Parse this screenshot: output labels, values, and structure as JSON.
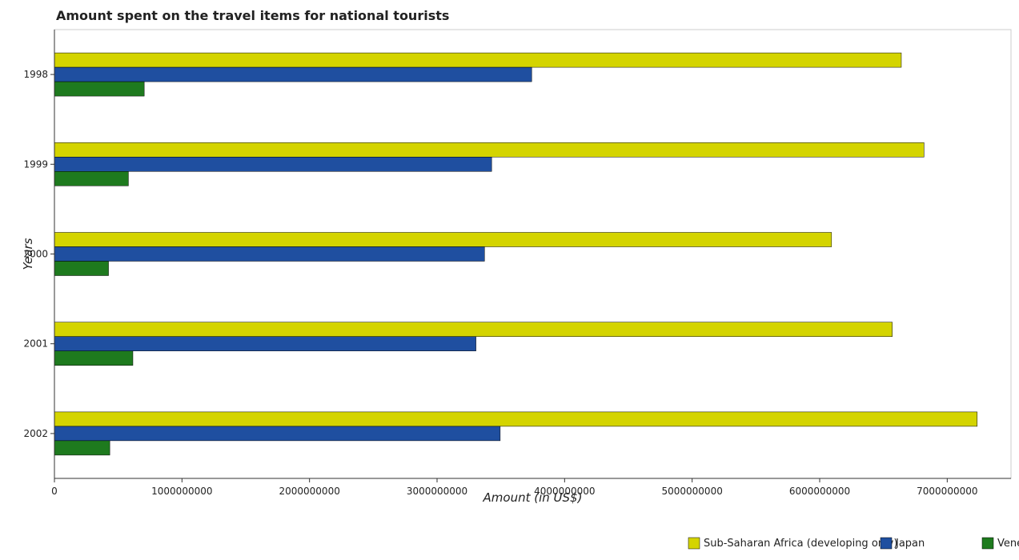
{
  "chart_data": {
    "type": "bar",
    "orientation": "horizontal",
    "title": "Amount spent on the travel items for national tourists",
    "xlabel": "Amount (in US$)",
    "ylabel": "Years",
    "categories": [
      "1998",
      "1999",
      "2000",
      "2001",
      "2002"
    ],
    "series": [
      {
        "name": "Sub-Saharan Africa (developing only)",
        "color": "#d4d400",
        "values": [
          6640000000,
          6818000000,
          6093000000,
          6569000000,
          7235000000
        ]
      },
      {
        "name": "Japan",
        "color": "#1f4fa0",
        "values": [
          3742000000,
          3428000000,
          3372000000,
          3305000000,
          3495000000
        ]
      },
      {
        "name": "Venezuela",
        "color": "#1e7a1e",
        "values": [
          704000000,
          580000000,
          424000000,
          615000000,
          434000000
        ]
      }
    ],
    "xlim": [
      0,
      7500000000
    ],
    "xticks": [
      0,
      1000000000,
      2000000000,
      3000000000,
      4000000000,
      5000000000,
      6000000000,
      7000000000
    ],
    "xtick_labels": [
      "0",
      "1000000000",
      "2000000000",
      "3000000000",
      "4000000000",
      "5000000000",
      "6000000000",
      "7000000000"
    ],
    "grid": false,
    "legend_position": "bottom-right"
  }
}
